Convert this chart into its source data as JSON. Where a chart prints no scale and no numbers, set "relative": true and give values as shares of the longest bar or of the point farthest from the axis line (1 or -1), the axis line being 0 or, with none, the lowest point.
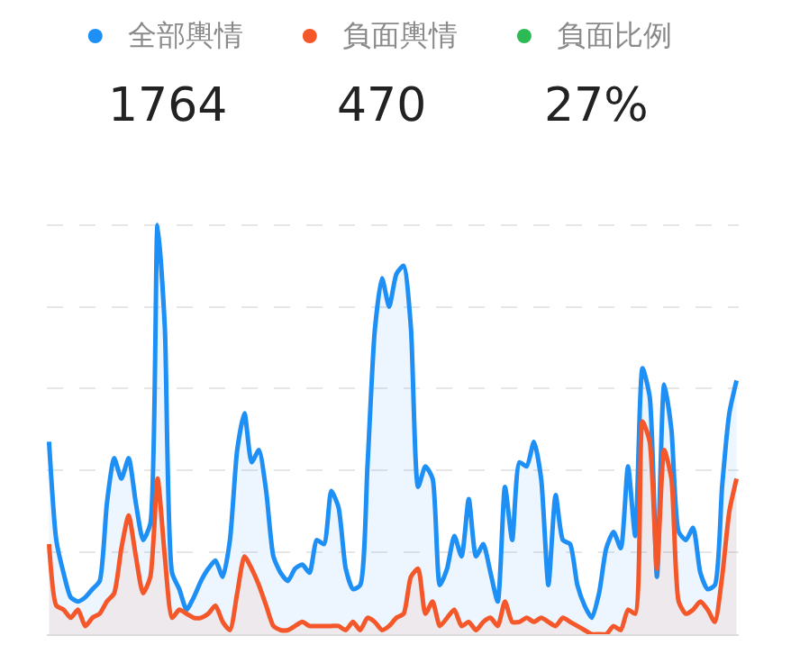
{
  "chart_data": {
    "type": "area",
    "relative": true,
    "grid": "y",
    "legend": "top",
    "categories": [
      null,
      null,
      null,
      null,
      null,
      null,
      null,
      null,
      null,
      null,
      null,
      null,
      null,
      null,
      null,
      null,
      null,
      null,
      null,
      null,
      null,
      null,
      null,
      null,
      null,
      null,
      null,
      null,
      null,
      null,
      null,
      null,
      null,
      null,
      null,
      null,
      null,
      null,
      null,
      null,
      null,
      null,
      null,
      null,
      null,
      null,
      null,
      null,
      null,
      null,
      null,
      null,
      null,
      null,
      null,
      null,
      null,
      null,
      null,
      null,
      null,
      null,
      null,
      null,
      null,
      null,
      null,
      null,
      null,
      null,
      null,
      null,
      null,
      null,
      null,
      null,
      null,
      null,
      null,
      null,
      null,
      null,
      null,
      null,
      null,
      null,
      null,
      null,
      null,
      null,
      null,
      null,
      null,
      null,
      null,
      null
    ],
    "series": [
      {
        "name": "全部輿情",
        "color": "#1e90f5",
        "values": [
          0.47,
          0.23,
          0.15,
          0.09,
          0.08,
          0.09,
          0.11,
          0.13,
          0.32,
          0.43,
          0.38,
          0.43,
          0.32,
          0.23,
          0.27,
          1.0,
          0.75,
          0.15,
          0.11,
          0.06,
          0.09,
          0.13,
          0.16,
          0.18,
          0.14,
          0.23,
          0.45,
          0.54,
          0.42,
          0.45,
          0.35,
          0.19,
          0.15,
          0.13,
          0.16,
          0.17,
          0.15,
          0.23,
          0.22,
          0.35,
          0.31,
          0.16,
          0.11,
          0.12,
          0.41,
          0.74,
          0.87,
          0.8,
          0.88,
          0.9,
          0.75,
          0.36,
          0.41,
          0.38,
          0.12,
          0.16,
          0.24,
          0.19,
          0.33,
          0.19,
          0.22,
          0.15,
          0.08,
          0.36,
          0.23,
          0.42,
          0.41,
          0.47,
          0.38,
          0.12,
          0.34,
          0.23,
          0.22,
          0.12,
          0.07,
          0.04,
          0.1,
          0.21,
          0.25,
          0.21,
          0.41,
          0.24,
          0.65,
          0.58,
          0.14,
          0.61,
          0.5,
          0.25,
          0.23,
          0.26,
          0.15,
          0.11,
          0.12,
          0.36,
          0.54,
          0.62
        ]
      },
      {
        "name": "負面輿情",
        "color": "#f4582a",
        "values": [
          0.22,
          0.07,
          0.06,
          0.04,
          0.06,
          0.02,
          0.04,
          0.05,
          0.08,
          0.1,
          0.21,
          0.29,
          0.19,
          0.1,
          0.14,
          0.38,
          0.19,
          0.04,
          0.06,
          0.05,
          0.04,
          0.04,
          0.05,
          0.07,
          0.03,
          0.01,
          0.1,
          0.19,
          0.16,
          0.12,
          0.07,
          0.02,
          0.01,
          0.01,
          0.02,
          0.03,
          0.02,
          0.02,
          0.02,
          0.02,
          0.02,
          0.01,
          0.03,
          0.01,
          0.04,
          0.03,
          0.01,
          0.02,
          0.04,
          0.05,
          0.14,
          0.16,
          0.05,
          0.08,
          0.02,
          0.04,
          0.06,
          0.02,
          0.03,
          0.01,
          0.03,
          0.04,
          0.02,
          0.08,
          0.03,
          0.03,
          0.04,
          0.03,
          0.04,
          0.03,
          0.02,
          0.04,
          0.03,
          0.02,
          0.01,
          0.0,
          0.0,
          0.0,
          0.02,
          0.01,
          0.06,
          0.05,
          0.52,
          0.47,
          0.16,
          0.45,
          0.38,
          0.08,
          0.05,
          0.06,
          0.08,
          0.06,
          0.03,
          0.14,
          0.3,
          0.38
        ]
      },
      {
        "name": "負面比例",
        "color": "#2dba55",
        "values": [
          null,
          null,
          null,
          null,
          null,
          null,
          null,
          null,
          null,
          null,
          null,
          null,
          null,
          null,
          null,
          null,
          null,
          null,
          null,
          null,
          null,
          null,
          null,
          null,
          null,
          null,
          null,
          null,
          null,
          null,
          null,
          null,
          null,
          null,
          null,
          null,
          null,
          null,
          null,
          null,
          null,
          null,
          null,
          null,
          null,
          null,
          null,
          null,
          null,
          null,
          null,
          null,
          null,
          null,
          null,
          null,
          null,
          null,
          null,
          null,
          null,
          null,
          null,
          null,
          null,
          null,
          null,
          null,
          null,
          null,
          null,
          null,
          null,
          null,
          null,
          null,
          null,
          null,
          null,
          null,
          null,
          null,
          null,
          null,
          null,
          null,
          null,
          null,
          null,
          null,
          null,
          null,
          null,
          null,
          null,
          null
        ]
      }
    ],
    "annotations": [
      "1764",
      "470",
      "27%"
    ]
  }
}
